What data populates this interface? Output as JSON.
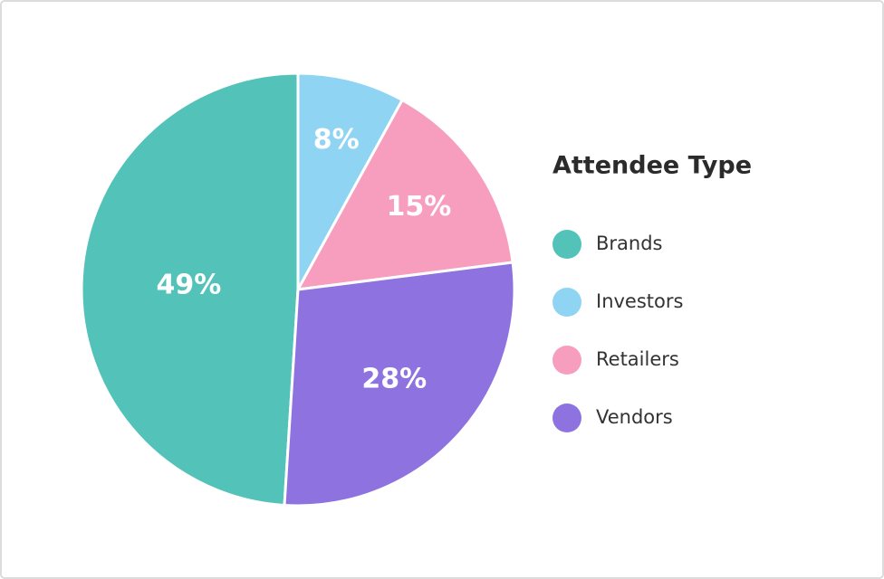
{
  "chart_data": {
    "type": "pie",
    "legend_title": "Attendee Type",
    "categories": [
      "Brands",
      "Investors",
      "Retailers",
      "Vendors"
    ],
    "values": [
      49,
      8,
      15,
      28
    ],
    "value_labels": [
      "49%",
      "8%",
      "15%",
      "28%"
    ],
    "colors": [
      "#53c3ba",
      "#8fd4f2",
      "#f79ebf",
      "#8e73e0"
    ],
    "legend": "right"
  }
}
